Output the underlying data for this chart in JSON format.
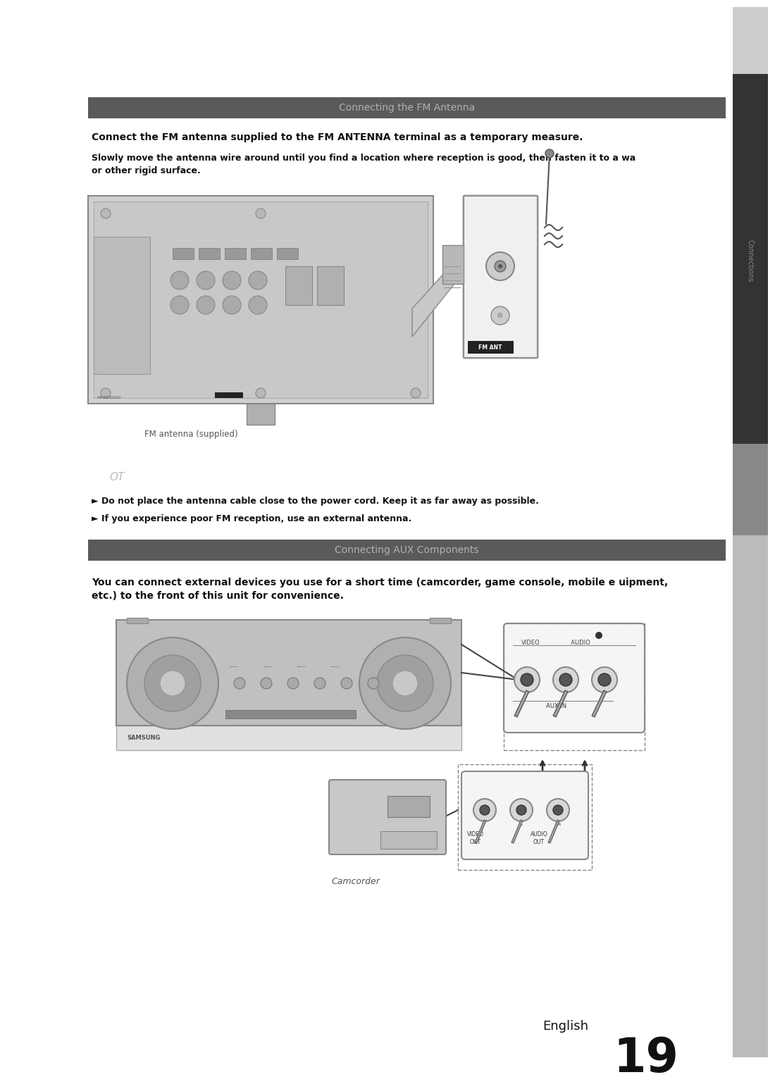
{
  "bg_color": "#ffffff",
  "page_width": 10.8,
  "page_height": 14.91,
  "section1_title": "Connecting the FM Antenna",
  "section1_title_bg": "#5a5a5a",
  "section1_title_color": "#b0b0b0",
  "bold_text1": "Connect the FM antenna supplied to the FM ANTENNA terminal as a temporary measure.",
  "body_text1": "Slowly move the antenna wire around until you find a location where reception is good, then fasten it to a wa\nor other rigid surface.",
  "caption1": "FM antenna (supplied)",
  "note_header": "OT",
  "note1": "► Do not place the antenna cable close to the power cord. Keep it as far away as possible.",
  "note2": "► If you experience poor FM reception, use an external antenna.",
  "section2_title": "Connecting AUX Components",
  "section2_title_bg": "#5a5a5a",
  "section2_title_color": "#b0b0b0",
  "bold_text2": "You can connect external devices you use for a short time (camcorder, game console, mobile e uipment,\netc.) to the front of this unit for convenience.",
  "caption2": "Camcorder",
  "footer_text": "English",
  "footer_num": "19",
  "sidebar_light": "#c0c0c0",
  "sidebar_mid": "#999999",
  "sidebar_dark": "#333333",
  "sidebar_text_color": "#555555"
}
